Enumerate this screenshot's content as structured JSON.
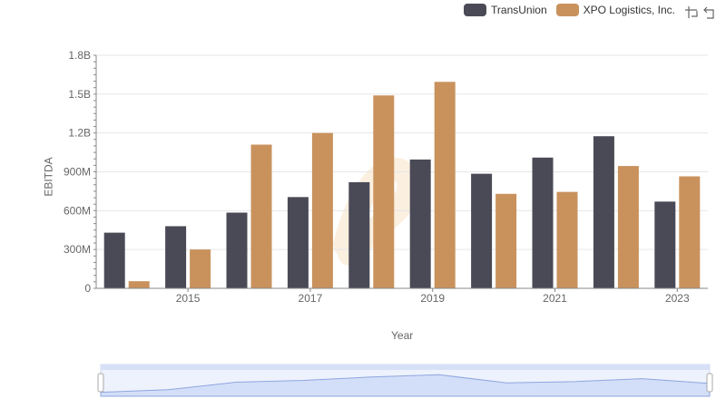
{
  "legend": [
    {
      "label": "TransUnion",
      "color": "#4a4a57"
    },
    {
      "label": "XPO Logistics, Inc.",
      "color": "#c9925d"
    }
  ],
  "toolbox": {
    "icons": [
      "zoom-icon",
      "zoom-reset-icon"
    ]
  },
  "chart_data": {
    "type": "bar",
    "categories": [
      "2014",
      "2015",
      "2016",
      "2017",
      "2018",
      "2019",
      "2020",
      "2021",
      "2022",
      "2023"
    ],
    "x_tick_labels": [
      "2015",
      "2017",
      "2019",
      "2021",
      "2023"
    ],
    "xlabel": "Year",
    "ylabel": "EBITDA",
    "ylim": [
      0,
      1800000000
    ],
    "y_ticks": [
      {
        "value": 0,
        "label": "0"
      },
      {
        "value": 300000000,
        "label": "300M"
      },
      {
        "value": 600000000,
        "label": "600M"
      },
      {
        "value": 900000000,
        "label": "900M"
      },
      {
        "value": 1200000000,
        "label": "1.2B"
      },
      {
        "value": 1500000000,
        "label": "1.5B"
      },
      {
        "value": 1800000000,
        "label": "1.8B"
      }
    ],
    "grid": true,
    "legend_position": "top-right",
    "series": [
      {
        "name": "TransUnion",
        "color": "#4a4a57",
        "values": [
          430000000,
          480000000,
          585000000,
          705000000,
          820000000,
          995000000,
          885000000,
          1010000000,
          1175000000,
          670000000
        ]
      },
      {
        "name": "XPO Logistics, Inc.",
        "color": "#c9925d",
        "values": [
          55000000,
          300000000,
          1110000000,
          1200000000,
          1490000000,
          1595000000,
          730000000,
          745000000,
          945000000,
          865000000
        ]
      }
    ]
  }
}
